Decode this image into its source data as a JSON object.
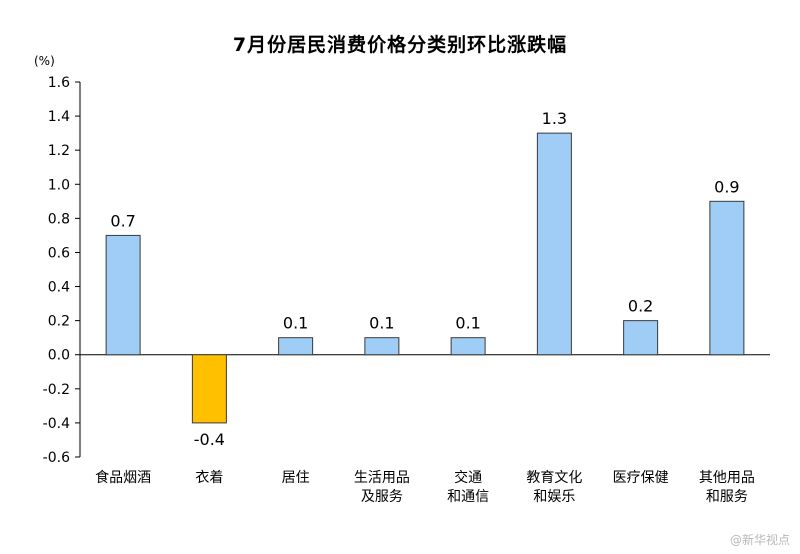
{
  "chart_data": {
    "type": "bar",
    "title": "7月份居民消费价格分类别环比涨跌幅",
    "unit": "(%)",
    "categories": [
      [
        "食品烟酒"
      ],
      [
        "衣着"
      ],
      [
        "居住"
      ],
      [
        "生活用品",
        "及服务"
      ],
      [
        "交通",
        "和通信"
      ],
      [
        "教育文化",
        "和娱乐"
      ],
      [
        "医疗保健"
      ],
      [
        "其他用品",
        "和服务"
      ]
    ],
    "values": [
      0.7,
      -0.4,
      0.1,
      0.1,
      0.1,
      1.3,
      0.2,
      0.9
    ],
    "value_labels": [
      "0.7",
      "-0.4",
      "0.1",
      "0.1",
      "0.1",
      "1.3",
      "0.2",
      "0.9"
    ],
    "ylim": [
      -0.6,
      1.6
    ],
    "yticks": [
      "1.6",
      "1.4",
      "1.2",
      "1.0",
      "0.8",
      "0.6",
      "0.4",
      "0.2",
      "0.0",
      "-0.2",
      "-0.4",
      "-0.6"
    ],
    "grid": false,
    "colors": {
      "positive": "#9fcdf6",
      "negative": "#ffc000",
      "border": "#3a3a3a",
      "axis": "#000000"
    }
  },
  "watermark": "@新华视点"
}
